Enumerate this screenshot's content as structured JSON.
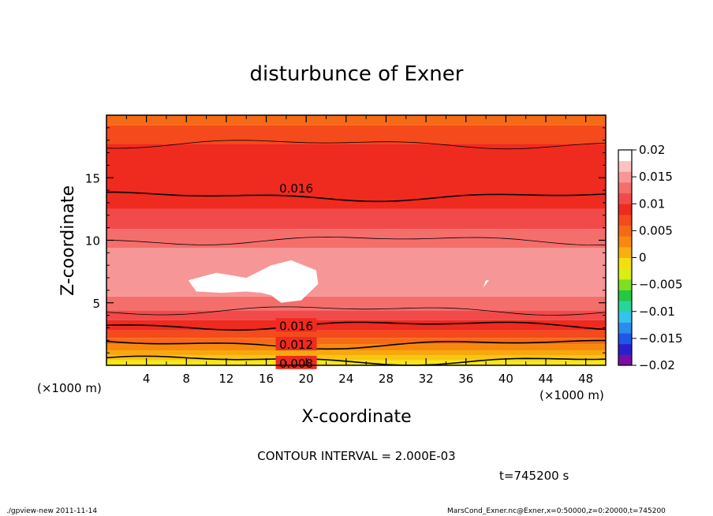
{
  "chart_data": {
    "type": "contour",
    "title": "disturbunce of Exner",
    "xlabel": "X-coordinate",
    "ylabel": "Z-coordinate",
    "x_unit": "(×1000 m)",
    "y_unit": "(×1000 m)",
    "xlim": [
      0,
      50
    ],
    "ylim": [
      0,
      20
    ],
    "xticks": [
      "4",
      "8",
      "12",
      "16",
      "20",
      "24",
      "28",
      "32",
      "36",
      "40",
      "44",
      "48"
    ],
    "yticks": [
      "5",
      "10",
      "15"
    ],
    "contour_interval_text": "CONTOUR INTERVAL = 2.000E-03",
    "time_text": "t=745200 s",
    "contour_labels": [
      {
        "text": "0.016",
        "x": 19,
        "z": 14.2
      },
      {
        "text": "0.016",
        "x": 19,
        "z": 3.2
      },
      {
        "text": "0.012",
        "x": 19,
        "z": 1.7
      },
      {
        "text": "0.008",
        "x": 19,
        "z": 0.2
      }
    ],
    "colorbar": {
      "ticks": [
        "0.02",
        "0.015",
        "0.01",
        "0.005",
        "0",
        "−0.005",
        "−0.01",
        "−0.015",
        "−0.02"
      ],
      "min": -0.02,
      "max": 0.02,
      "colors": [
        "#7a0da8",
        "#2a1fcf",
        "#1f56ea",
        "#2b8cf0",
        "#34c3ee",
        "#26d59c",
        "#23c943",
        "#7fdf1f",
        "#d7ef12",
        "#f5de10",
        "#f7b00d",
        "#f78a0d",
        "#f66a16",
        "#f44a1c",
        "#ef2a1f",
        "#f24a4a",
        "#f46e6c",
        "#f79696",
        "#fbc2c2",
        "#ffffff"
      ]
    },
    "bands": [
      {
        "z": 0.0,
        "color": "#f5e812"
      },
      {
        "z": 0.4,
        "color": "#f7c60e"
      },
      {
        "z": 0.8,
        "color": "#f7a80d"
      },
      {
        "z": 1.2,
        "color": "#f7880d"
      },
      {
        "z": 1.7,
        "color": "#f66a16"
      },
      {
        "z": 2.2,
        "color": "#f44a1c"
      },
      {
        "z": 2.8,
        "color": "#ef2a1f"
      },
      {
        "z": 3.6,
        "color": "#f24a4a"
      },
      {
        "z": 4.4,
        "color": "#f46e6c"
      },
      {
        "z": 5.5,
        "color": "#f79696"
      },
      {
        "z": 9.4,
        "color": "#f46e6c"
      },
      {
        "z": 10.9,
        "color": "#f24a4a"
      },
      {
        "z": 12.5,
        "color": "#ef2a1f"
      },
      {
        "z": 17.7,
        "color": "#f44a1c"
      },
      {
        "z": 19.2,
        "color": "#f66a16"
      }
    ],
    "contour_lines": [
      {
        "z": 0.4,
        "weight": "thick"
      },
      {
        "z": 1.7,
        "weight": "thick"
      },
      {
        "z": 3.2,
        "weight": "thick"
      },
      {
        "z": 4.4,
        "weight": "thin"
      },
      {
        "z": 10.0,
        "weight": "thin"
      },
      {
        "z": 13.5,
        "weight": "thick"
      },
      {
        "z": 17.7,
        "weight": "thin"
      }
    ],
    "white_regions": [
      {
        "x": [
          8.2,
          11,
          14,
          16.5,
          18.5,
          21,
          21.2,
          19.5,
          17.5,
          16.5,
          15.5,
          14,
          11.5,
          9
        ],
        "z": [
          6.8,
          7.4,
          7.0,
          8.0,
          8.4,
          7.6,
          6.5,
          5.2,
          5.0,
          5.6,
          5.8,
          5.9,
          5.8,
          5.9
        ]
      },
      {
        "x": [
          37.7,
          38.3,
          38.0
        ],
        "z": [
          6.2,
          6.8,
          6.8
        ]
      }
    ]
  },
  "footer": {
    "left": "./gpview-new   2011-11-14",
    "right": "MarsCond_Exner.nc@Exner,x=0:50000,z=0:20000,t=745200"
  }
}
